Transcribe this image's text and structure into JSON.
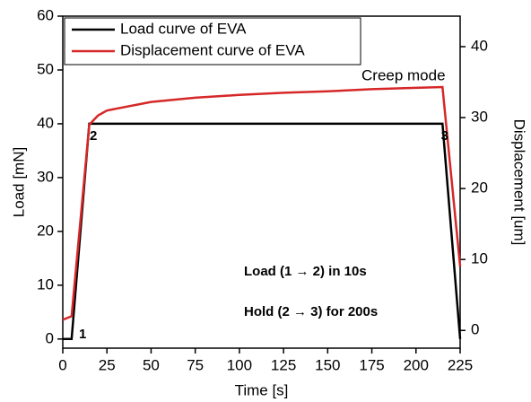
{
  "chart_data": {
    "type": "line",
    "x_label": "Time [s]",
    "y_label": "Load [mN]",
    "y2_label": "Displacement [um]",
    "xlim": [
      0,
      225
    ],
    "xticks": [
      0,
      25,
      50,
      75,
      100,
      125,
      150,
      175,
      200,
      225
    ],
    "ylim": [
      -1.7,
      60
    ],
    "yticks": [
      0,
      10,
      20,
      30,
      40,
      50,
      60
    ],
    "y2lim": [
      -2.5,
      44.3
    ],
    "y2ticks": [
      0,
      10,
      20,
      30,
      40
    ],
    "legend": "upper left",
    "series": [
      {
        "name": "Load curve of EVA",
        "color": "#000000",
        "x": [
          0,
          5,
          15,
          215,
          225
        ],
        "values": [
          0,
          0,
          40,
          40,
          0
        ]
      },
      {
        "name": "Displacement curve of EVA",
        "color": "#d62728",
        "axis": "y2",
        "x": [
          0,
          5,
          15,
          20,
          25,
          50,
          75,
          100,
          125,
          150,
          175,
          200,
          215,
          225
        ],
        "values": [
          1.5,
          2,
          29,
          30.3,
          31,
          32.2,
          32.8,
          33.2,
          33.5,
          33.7,
          34,
          34.2,
          34.3,
          9
        ]
      }
    ],
    "annotations": [
      "1",
      "2",
      "3",
      "Creep mode",
      "Load (1 → 2) in 10s",
      "Hold (2 → 3) for 200s"
    ]
  }
}
